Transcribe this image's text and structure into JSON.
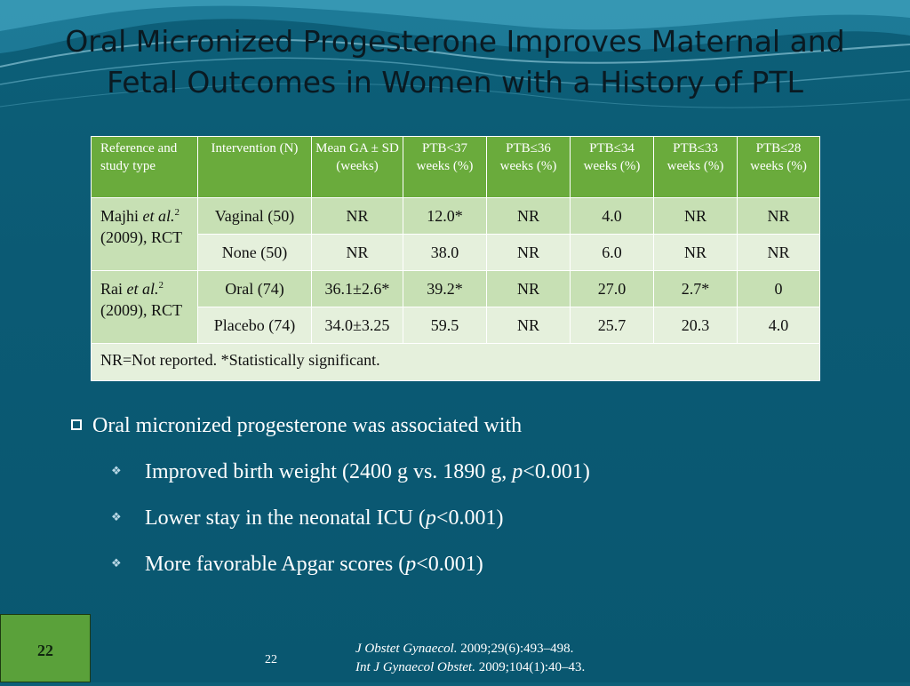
{
  "slide": {
    "title_line1": "Oral Micronized Progesterone Improves Maternal and",
    "title_line2": "Fetal Outcomes in Women with a History of PTL",
    "slide_box_number": "22",
    "page_number": "22"
  },
  "table": {
    "headers": [
      "Reference and study type",
      "Intervention (N)",
      "Mean GA ± SD (weeks)",
      "PTB<37 weeks (%)",
      "PTB≤36 weeks (%)",
      "PTB≤34 weeks (%)",
      "PTB≤33 weeks (%)",
      "PTB≤28 weeks (%)"
    ],
    "studies": [
      {
        "ref_author": "Majhi ",
        "ref_etal": "et al.",
        "ref_sup": "2",
        "ref_rest": " (2009), RCT",
        "rows": [
          [
            "Vaginal (50)",
            "NR",
            "12.0*",
            "NR",
            "4.0",
            "NR",
            "NR"
          ],
          [
            "None (50)",
            "NR",
            "38.0",
            "NR",
            "6.0",
            "NR",
            "NR"
          ]
        ]
      },
      {
        "ref_author": "Rai ",
        "ref_etal": "et al.",
        "ref_sup": "2",
        "ref_rest": " (2009), RCT",
        "rows": [
          [
            "Oral (74)",
            "36.1±2.6*",
            "39.2*",
            "NR",
            "27.0",
            "2.7*",
            "0"
          ],
          [
            "Placebo (74)",
            "34.0±3.25",
            "59.5",
            "NR",
            "25.7",
            "20.3",
            "4.0"
          ]
        ]
      }
    ],
    "footnote": "NR=Not reported. *Statistically significant."
  },
  "bullets": {
    "main": "Oral micronized progesterone was associated with",
    "sub1_pre": "Improved birth weight (2400 g vs. 1890 g, ",
    "sub1_p": "p",
    "sub1_post": "<0.001)",
    "sub2_pre": "Lower stay in the neonatal ICU (",
    "sub2_p": "p",
    "sub2_post": "<0.001)",
    "sub3_pre": "More favorable Apgar scores (",
    "sub3_p": "p",
    "sub3_post": "<0.001)"
  },
  "references": {
    "ref1_journal": "J Obstet Gynaecol.",
    "ref1_rest": " 2009;29(6):493–498.",
    "ref2_journal": "Int J Gynaecol Obstet.",
    "ref2_rest": " 2009;104(1):40–43."
  },
  "colors": {
    "background": "#0b5a74",
    "header_green": "#6aab3c",
    "row_dark": "#c7e0b4",
    "row_light": "#e5f0dc"
  }
}
